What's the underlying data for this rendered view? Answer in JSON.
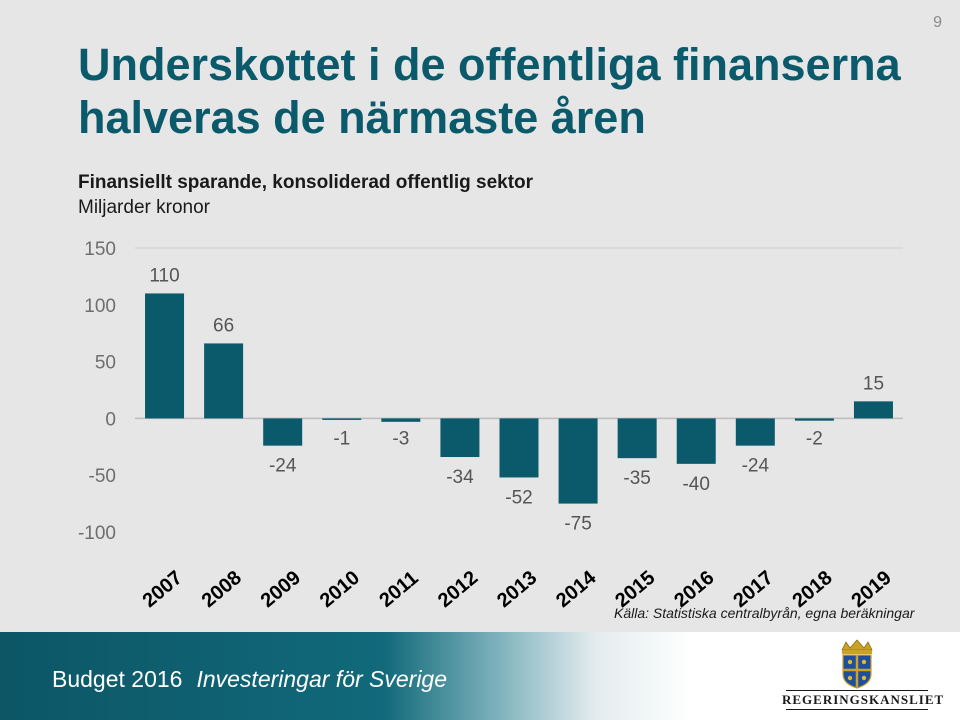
{
  "slide": {
    "page_number": "9",
    "title": "Underskottet i de offentliga finanserna halveras de närmaste åren",
    "subtitle": "Finansiellt sparande, konsoliderad offentlig sektor",
    "unit_label": "Miljarder kronor",
    "source_prefix": "Källa",
    "source_rest": ": Statistiska centralbyrån, egna beräkningar"
  },
  "footer": {
    "budget": "Budget 2016",
    "tagline": "Investeringar för Sverige",
    "logo_text": "REGERINGSKANSLIET",
    "logo_icon": "crown-shield-emblem-icon"
  },
  "chart_data": {
    "type": "bar",
    "title": "Finansiellt sparande, konsoliderad offentlig sektor",
    "ylabel": "Miljarder kronor",
    "xlabel": "",
    "categories": [
      "2007",
      "2008",
      "2009",
      "2010",
      "2011",
      "2012",
      "2013",
      "2014",
      "2015",
      "2016",
      "2017",
      "2018",
      "2019"
    ],
    "values": [
      110,
      66,
      -24,
      -1,
      -3,
      -34,
      -52,
      -75,
      -35,
      -40,
      -24,
      -2,
      15
    ],
    "data_labels": [
      "110",
      "66",
      "-24",
      "-1",
      "-3",
      "-34",
      "-52",
      "-75",
      "-35",
      "-40",
      "-24",
      "-2",
      "15"
    ],
    "ylim": [
      -100,
      150
    ],
    "yticks": [
      150,
      100,
      50,
      0,
      -50,
      -100
    ],
    "ytick_labels": [
      "150",
      "100",
      "50",
      "0",
      "-50",
      "-100"
    ],
    "bar_color": "#0a5a6b",
    "grid": false,
    "legend": "none"
  }
}
